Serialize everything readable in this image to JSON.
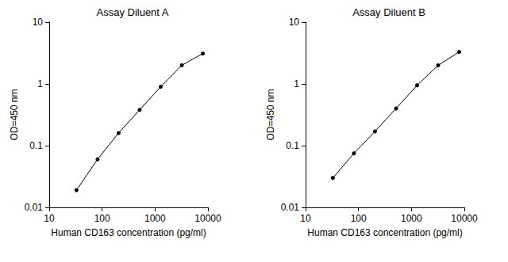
{
  "chart_data": [
    {
      "type": "line",
      "title": "Assay Diluent A",
      "xlabel": "Human CD163 concentration (pg/ml)",
      "ylabel": "OD=450 nm",
      "x": [
        32.77,
        81.92,
        204.8,
        512,
        1280,
        3200,
        8000
      ],
      "values": [
        0.019,
        0.06,
        0.16,
        0.38,
        0.9,
        2.0,
        3.1
      ],
      "xlim": [
        10,
        10000
      ],
      "xticks": [
        10,
        100,
        1000,
        10000
      ],
      "ylim": [
        0.01,
        10
      ],
      "yticks": [
        0.01,
        0.1,
        1,
        10
      ],
      "log": true,
      "grid": false,
      "color": "#000000",
      "marker": "circle",
      "line_style": "solid"
    },
    {
      "type": "line",
      "title": "Assay Diluent B",
      "xlabel": "Human CD163 concentration (pg/ml)",
      "ylabel": "OD=450 nm",
      "x": [
        32.77,
        81.92,
        204.8,
        512,
        1280,
        3200,
        8000
      ],
      "values": [
        0.03,
        0.075,
        0.17,
        0.4,
        0.95,
        2.0,
        3.3
      ],
      "xlim": [
        10,
        10000
      ],
      "xticks": [
        10,
        100,
        1000,
        10000
      ],
      "ylim": [
        0.01,
        10
      ],
      "yticks": [
        0.01,
        0.1,
        1,
        10
      ],
      "log": true,
      "grid": false,
      "color": "#000000",
      "marker": "circle",
      "line_style": "solid"
    }
  ]
}
